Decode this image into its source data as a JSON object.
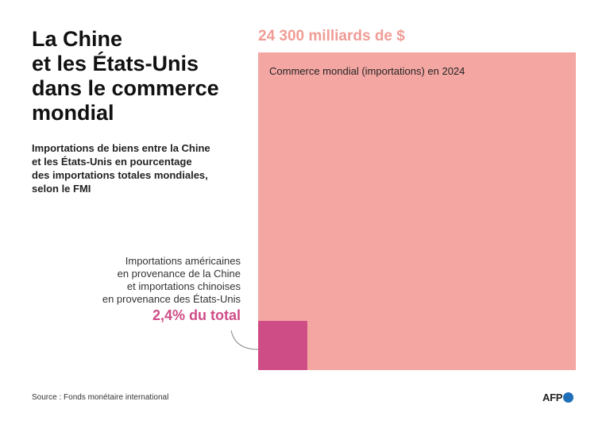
{
  "title_lines": [
    "La Chine",
    "et les États-Unis",
    "dans le commerce",
    "mondial"
  ],
  "subtitle_lines": [
    "Importations de biens entre la Chine",
    "et les États-Unis en pourcentage",
    "des importations totales mondiales,",
    "selon le FMI"
  ],
  "chart_data": {
    "type": "area",
    "total": {
      "label": "24 300 milliards de $",
      "caption": "Commerce mondial (importations) en 2024",
      "value": 24300,
      "unit": "milliards de $",
      "color": "#f4a7a2"
    },
    "part": {
      "annotation_lines": [
        "Importations américaines",
        "en provenance de la Chine",
        "et importations chinoises",
        "en provenance des États-Unis"
      ],
      "value_label": "2,4% du total",
      "share_percent": 2.4,
      "color": "#cf4d87"
    }
  },
  "source": "Source : Fonds monétaire international",
  "logo": {
    "text": "AFP",
    "dot_color": "#1f6fb8"
  }
}
